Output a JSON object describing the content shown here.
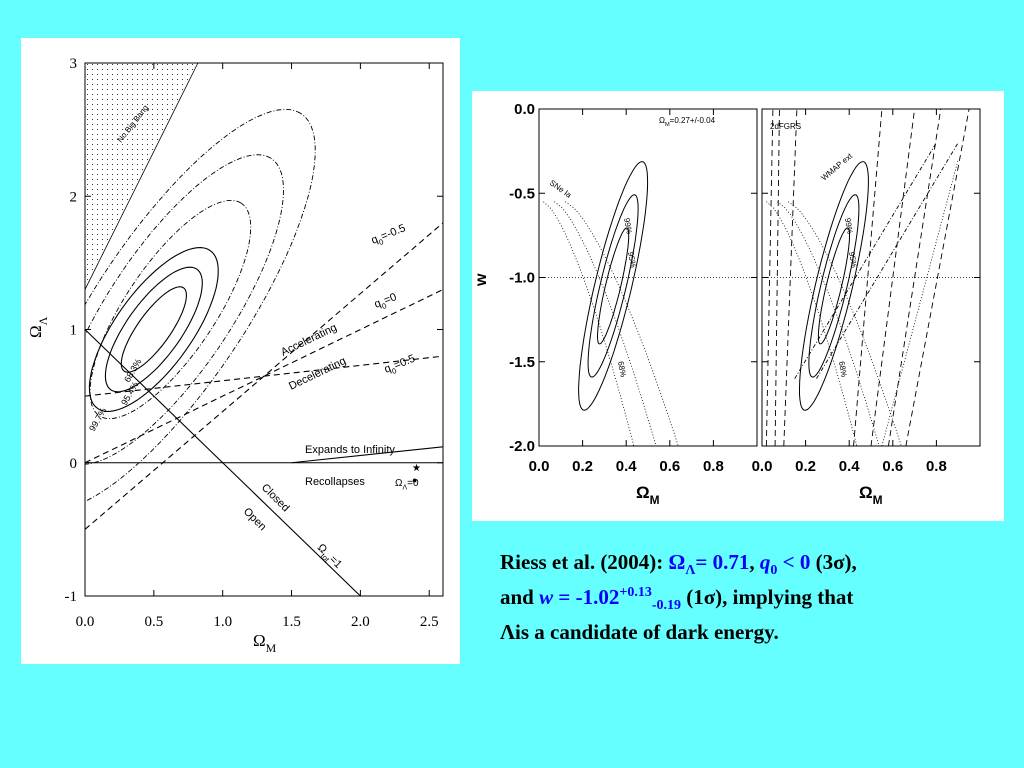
{
  "chart_data": [
    {
      "type": "line",
      "xlabel": "Ω",
      "xlabel_sub": "M",
      "ylabel": "Ω",
      "ylabel_sub": "Λ",
      "xlim": [
        0.0,
        2.6
      ],
      "ylim": [
        -1.0,
        3.0
      ],
      "x_ticks": [
        "0.0",
        "0.5",
        "1.0",
        "1.5",
        "2.0",
        "2.5"
      ],
      "y_ticks": [
        "-1",
        "0",
        "1",
        "2",
        "3"
      ],
      "shaded_region_label": "No Big Bang",
      "confidence_labels": [
        "68.3%",
        "95.4%",
        "99.7%"
      ],
      "lines": [
        {
          "name": "q0=-0.5",
          "label": "q",
          "label_sub": "0",
          "label_rest": "=-0.5",
          "style": "dashed",
          "points": [
            [
              0.0,
              -0.5
            ],
            [
              2.6,
              1.8
            ]
          ]
        },
        {
          "name": "q0=0",
          "label": "q",
          "label_sub": "0",
          "label_rest": "=0",
          "style": "dashed",
          "points": [
            [
              0.0,
              0.0
            ],
            [
              2.6,
              1.3
            ]
          ]
        },
        {
          "name": "q0=0.5",
          "label": "q",
          "label_sub": "0",
          "label_rest": "=0.5",
          "style": "dashed",
          "points": [
            [
              0.0,
              0.5
            ],
            [
              2.6,
              0.8
            ]
          ]
        },
        {
          "name": "flat",
          "label": "Ω",
          "label_sub": "tot",
          "label_rest": "=1",
          "style": "solid",
          "points": [
            [
              0.0,
              1.0
            ],
            [
              2.0,
              -1.0
            ]
          ]
        },
        {
          "name": "Lambda=0",
          "style": "solid",
          "points": [
            [
              0.0,
              0.0
            ],
            [
              2.6,
              0.0
            ]
          ]
        },
        {
          "name": "Expands to Infinity",
          "style": "solid",
          "points": [
            [
              1.5,
              0.0
            ],
            [
              2.6,
              0.12
            ]
          ]
        }
      ],
      "annotations": [
        "Accelerating",
        "Decelerating",
        "Expands to Infinity",
        "Recollapses",
        "Closed",
        "Open"
      ],
      "legend": {
        "label": "Ω",
        "label_sub": "Λ",
        "label_rest": "=0",
        "markers": [
          "★",
          "●"
        ]
      }
    },
    {
      "type": "line",
      "panels": [
        {
          "title": "Ω",
          "title_sub": "M",
          "title_rest": "=0.27+/-0.04",
          "annotation": "SNe Ia",
          "confidence_labels": [
            "68%",
            "95%",
            "99%"
          ]
        },
        {
          "title": "2dFGRS",
          "annotation": "WMAP ext",
          "confidence_labels": [
            "68%",
            "95%",
            "99%"
          ]
        }
      ],
      "ylabel": "w",
      "xlabel": "Ω",
      "xlabel_sub": "M",
      "xlim": [
        0.0,
        1.0
      ],
      "ylim": [
        -2.0,
        0.0
      ],
      "x_ticks": [
        "0.0",
        "0.2",
        "0.4",
        "0.6",
        "0.8"
      ],
      "y_ticks": [
        "0.0",
        "-0.5",
        "-1.0",
        "-1.5",
        "-2.0"
      ],
      "reference_line_w": -1.0
    }
  ],
  "caption": {
    "line1_prefix": "Riess et al. (2004): ",
    "omega_symbol": "Ω",
    "omega_sub": "Λ",
    "omega_value": "= 0.71",
    "sep": ", ",
    "q_symbol": "q",
    "q_sub": "0",
    "q_value": " < 0",
    "sigma3": " (3σ),",
    "and": "and ",
    "w_symbol": "w",
    "w_value": " = -1.02",
    "w_sup": "+0.13",
    "w_sub": "-0.19",
    "sigma1": " (1σ), implying that",
    "line3": "Λis a candidate of dark energy."
  }
}
